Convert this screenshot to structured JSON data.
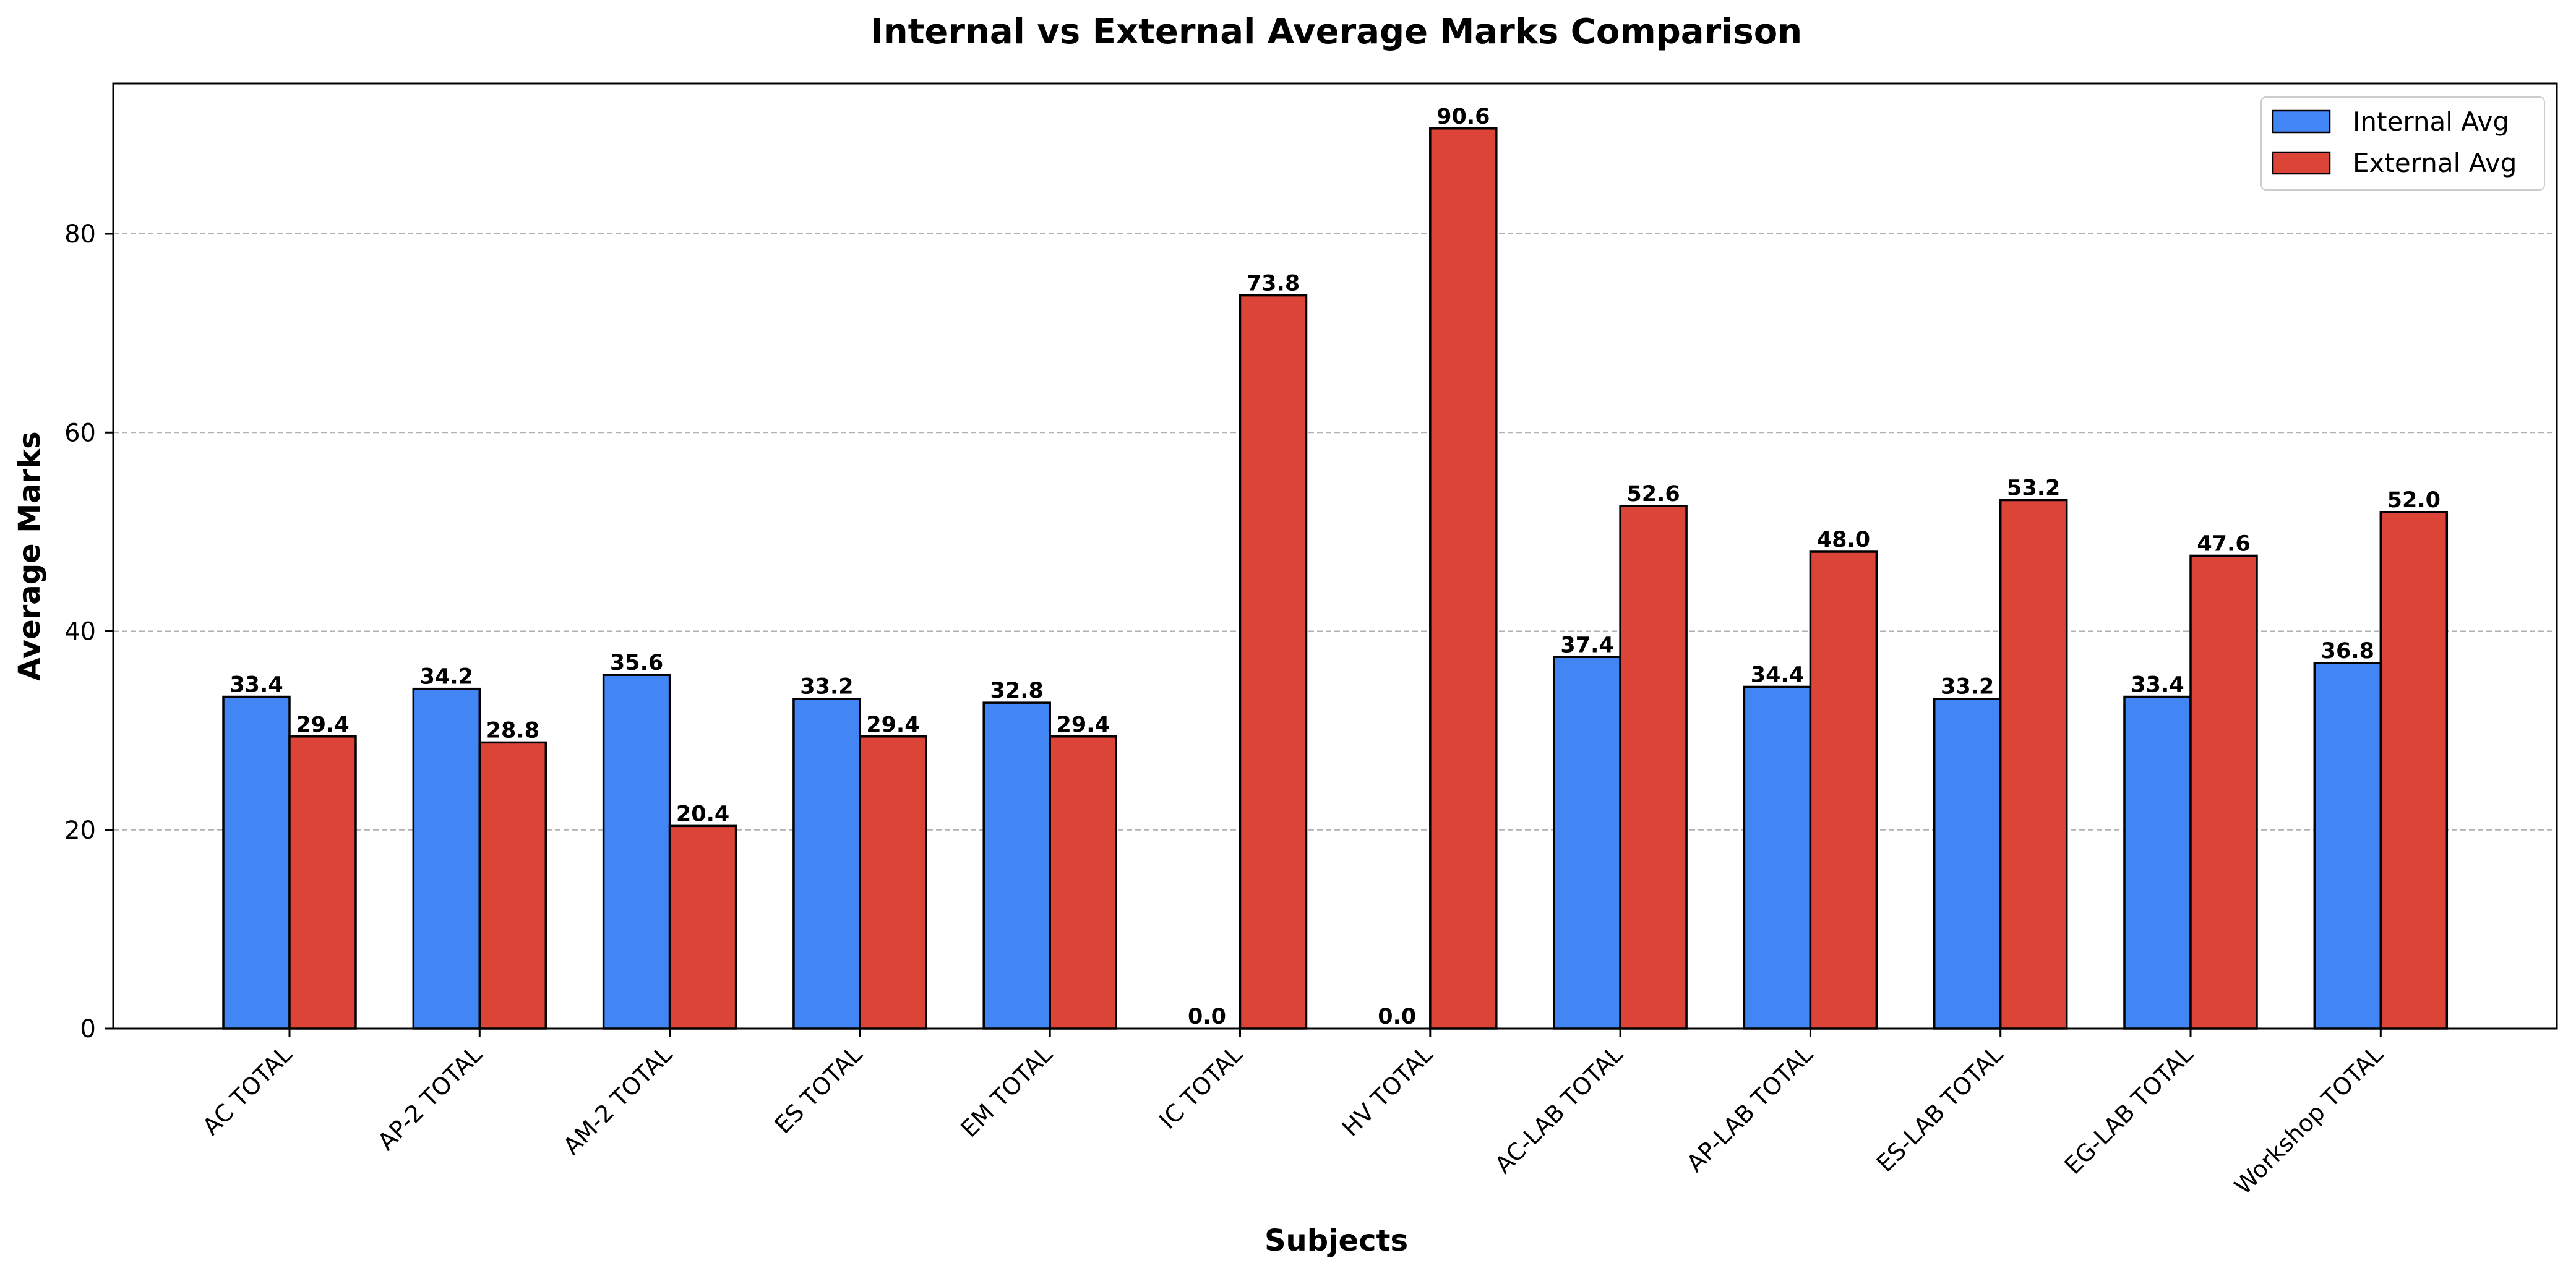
{
  "chart_data": {
    "type": "bar",
    "title": "Internal vs External Average Marks Comparison",
    "xlabel": "Subjects",
    "ylabel": "Average Marks",
    "categories": [
      "AC TOTAL",
      "AP-2 TOTAL",
      "AM-2 TOTAL",
      "ES TOTAL",
      "EM TOTAL",
      "IC TOTAL",
      "HV TOTAL",
      "AC-LAB TOTAL",
      "AP-LAB TOTAL",
      "ES-LAB TOTAL",
      "EG-LAB TOTAL",
      "Workshop TOTAL"
    ],
    "series": [
      {
        "name": "Internal Avg",
        "color": "#4285f4",
        "values": [
          33.4,
          34.2,
          35.6,
          33.2,
          32.8,
          0.0,
          0.0,
          37.4,
          34.4,
          33.2,
          33.4,
          36.8
        ]
      },
      {
        "name": "External Avg",
        "color": "#db4437",
        "values": [
          29.4,
          28.8,
          20.4,
          29.4,
          29.4,
          73.8,
          90.6,
          52.6,
          48.0,
          53.2,
          47.6,
          52.0
        ]
      }
    ],
    "ylim": [
      0,
      95.13
    ],
    "yticks": [
      0,
      20,
      40,
      60,
      80
    ],
    "grid": "y-dashed",
    "legend_position": "top-right",
    "value_label_decimals": 1
  }
}
